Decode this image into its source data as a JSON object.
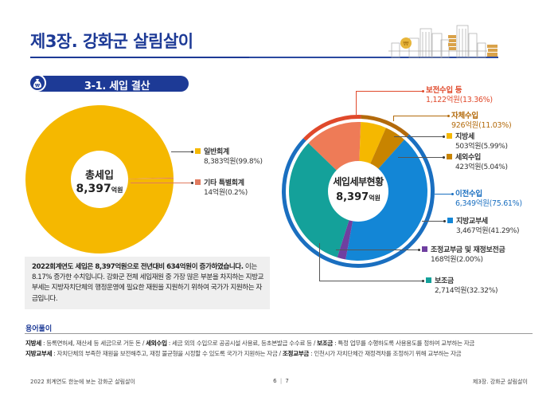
{
  "header": {
    "title": "제3장. 강화군 살림살이",
    "section_label": "3-1. 세입 결산",
    "section_icon": "money-bag-icon",
    "decoration": "city-skyline-illustration"
  },
  "chart_data": [
    {
      "type": "pie",
      "title": "총세입",
      "center_value": "8,397",
      "center_unit": "억원",
      "categories": [
        "일반회계",
        "기타 특별회계"
      ],
      "values": [
        8383,
        14
      ],
      "percents": [
        99.8,
        0.2
      ],
      "value_labels": [
        "8,383억원(99.8%)",
        "14억원(0.2%)"
      ],
      "colors": [
        "#f5b800",
        "#e07a5f"
      ],
      "legend": "right"
    },
    {
      "type": "pie",
      "title": "세입세부현황",
      "center_value": "8,397",
      "center_unit": "억원",
      "categories": [
        "보전수입 등",
        "지방세",
        "세외수입",
        "지방교부세",
        "조정교부금 및 재정보전금",
        "보조금"
      ],
      "values": [
        1122,
        503,
        423,
        3467,
        168,
        2714
      ],
      "percents": [
        13.36,
        5.99,
        5.04,
        41.29,
        2.0,
        32.32
      ],
      "value_labels": [
        "1,122억원(13.36%)",
        "503억원(5.99%)",
        "423억원(5.04%)",
        "3,467억원(41.29%)",
        "168억원(2.00%)",
        "2,714억원(32.32%)"
      ],
      "colors": [
        "#ee7b57",
        "#f5b800",
        "#c88400",
        "#1386d6",
        "#6f3fa0",
        "#14a19a"
      ],
      "groups": [
        {
          "name": "보전수입 등",
          "label": "1,122억원(13.36%)",
          "color": "#e0492b",
          "members": [
            0
          ]
        },
        {
          "name": "자체수입",
          "label": "926억원(11.03%)",
          "color": "#b36a0b",
          "members": [
            1,
            2
          ],
          "values": [
            926
          ],
          "percent": 11.03
        },
        {
          "name": "이전수입",
          "label": "6,349억원(75.61%)",
          "color": "#1a6fc0",
          "members": [
            3,
            4,
            5
          ],
          "values": [
            6349
          ],
          "percent": 75.61
        }
      ],
      "legend": "right"
    }
  ],
  "description": {
    "bold_text": "2022회계연도 세입은 8,397억원으로 전년대비 634억원이 증가하였습니다.",
    "text": " 이는 8.17% 증가한 수치입니다. 강화군 전체 세입재원 중 가장 많은 부분을 차지하는 지방교부세는 지방자치단체의 행정운영에 필요한 재원을 지원하기 위하여 국가가 지원하는 자금입니다."
  },
  "glossary": {
    "title": "용어풀이",
    "line1": [
      {
        "term": "지방세",
        "def": " : 등록면허세, 재산세 등 세금으로 거둔 돈 / "
      },
      {
        "term": "세외수입",
        "def": " : 세금 외의 수입으로 공공시설 사용료, 등초본발급 수수료 등 / "
      },
      {
        "term": "보조금",
        "def": " : 특정 업무를 수행하도록 사용용도를 정하여 교부하는 자금"
      }
    ],
    "line2": [
      {
        "term": "지방교부세",
        "def": " : 자치단체의 부족한 재원을 보전해주고, 재정 불균형을 시정할 수 있도록 국가가 지원하는 자금 / "
      },
      {
        "term": "조정교부금",
        "def": " : 인천시가 자치단체간 재정격차를 조정하기 위해 교부하는 자금"
      }
    ]
  },
  "footer": {
    "left": "2022 회계연도 한눈에 보는 강화군 살림살이",
    "page_left": "6",
    "page_sep": "|",
    "page_right": "7",
    "right": "제3장. 강화군 살림살이"
  }
}
